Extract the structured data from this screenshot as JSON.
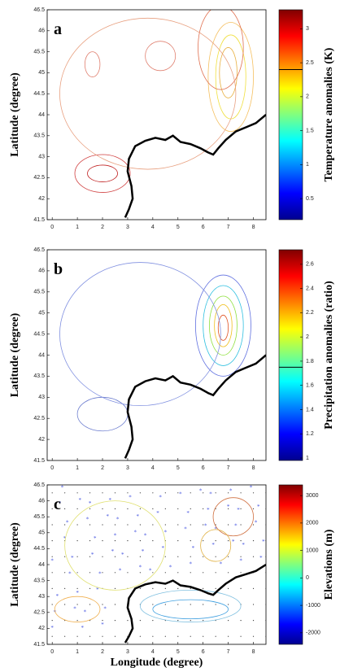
{
  "chart_data": [
    {
      "type": "contour",
      "panel_label": "a",
      "ylabel": "Latitude (degree)",
      "colorbar_label": "Temperature anomalies (K)",
      "colormap": "jet",
      "xlim": [
        -0.2,
        8.5
      ],
      "xticks": [
        0,
        1,
        2,
        3,
        4,
        5,
        6,
        7,
        8
      ],
      "ylim": [
        41.5,
        46.5
      ],
      "yticks": [
        41.5,
        42,
        42.5,
        43,
        43.5,
        44,
        44.5,
        45,
        45.5,
        46,
        46.5
      ],
      "clim": [
        0.19,
        3.28
      ],
      "cticks": [
        0.5,
        1,
        1.5,
        2,
        2.5,
        3
      ],
      "cbar_marker": 2.4
    },
    {
      "type": "contour",
      "panel_label": "b",
      "ylabel": "Latitude (degree)",
      "colorbar_label": "Precipitation anomalies (ratio)",
      "colormap": "jet",
      "xlim": [
        -0.2,
        8.5
      ],
      "xticks": [
        0,
        1,
        2,
        3,
        4,
        5,
        6,
        7,
        8
      ],
      "ylim": [
        41.5,
        46.5
      ],
      "yticks": [
        41.5,
        42,
        42.5,
        43,
        43.5,
        44,
        44.5,
        45,
        45.5,
        46,
        46.5
      ],
      "clim": [
        0.98,
        2.72
      ],
      "cticks": [
        1,
        1.2,
        1.4,
        1.6,
        1.8,
        2,
        2.2,
        2.4,
        2.6
      ],
      "cbar_marker": 1.75
    },
    {
      "type": "contour",
      "panel_label": "c",
      "ylabel": "Latitude (degree)",
      "xlabel": "Longitude (degree)",
      "colorbar_label": "Elevations (m)",
      "colormap": "jet",
      "xlim": [
        -0.2,
        8.5
      ],
      "xticks": [
        0,
        1,
        2,
        3,
        4,
        5,
        6,
        7,
        8
      ],
      "ylim": [
        41.5,
        46.5
      ],
      "yticks": [
        41.5,
        42,
        42.5,
        43,
        43.5,
        44,
        44.5,
        45,
        45.5,
        46,
        46.5
      ],
      "clim": [
        -2420,
        3390
      ],
      "cticks": [
        -2000,
        -1000,
        0,
        1000,
        2000,
        3000
      ]
    }
  ]
}
